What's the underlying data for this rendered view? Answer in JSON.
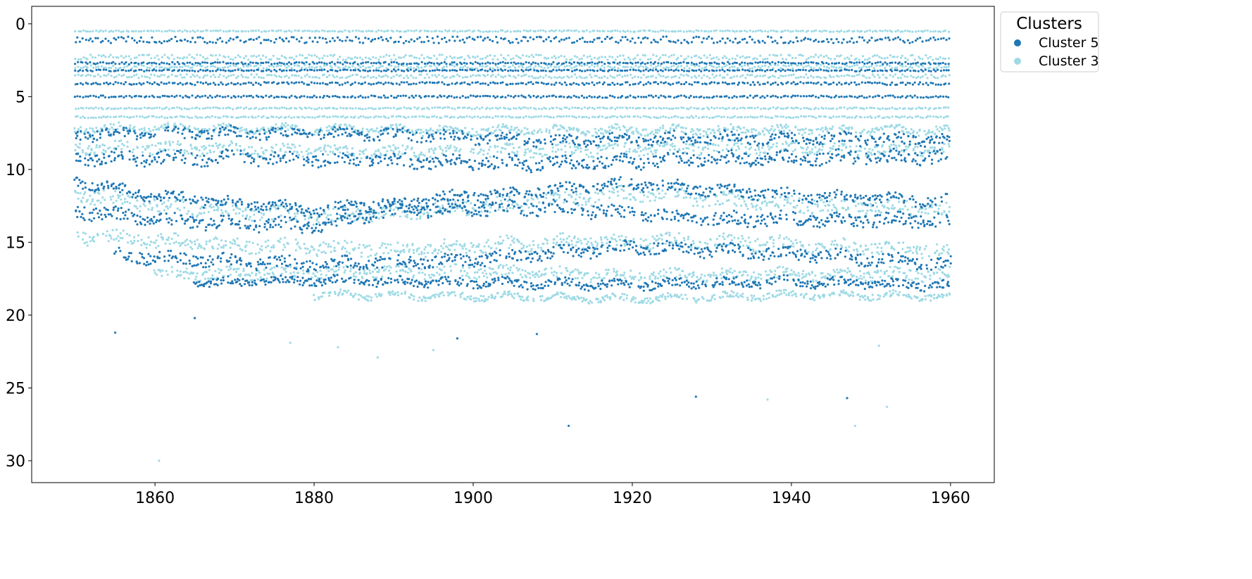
{
  "chart_data": {
    "type": "scatter",
    "title": "",
    "xlabel": "",
    "ylabel": "",
    "xlim": [
      1844.5,
      1965.5
    ],
    "ylim": [
      31.5,
      -1.2
    ],
    "y_inverted": true,
    "x_ticks": [
      1860,
      1880,
      1900,
      1920,
      1940,
      1960
    ],
    "y_ticks": [
      0,
      5,
      10,
      15,
      20,
      25,
      30
    ],
    "grid": false,
    "legend": {
      "title": "Clusters",
      "placement": "outside-top-right",
      "entries": [
        {
          "name": "Cluster 5",
          "color": "#1f77b4"
        },
        {
          "name": "Cluster 3",
          "color": "#9edae5"
        }
      ]
    },
    "series": [
      {
        "name": "Cluster 5",
        "color": "#1f77b4",
        "x_range": [
          1850,
          1960
        ],
        "flat_bands": [
          {
            "y": 1.1,
            "thickness": 0.45
          },
          {
            "y": 2.7,
            "thickness": 0.15
          },
          {
            "y": 3.2,
            "thickness": 0.12
          },
          {
            "y": 4.1,
            "thickness": 0.2
          },
          {
            "y": 5.0,
            "thickness": 0.15
          }
        ],
        "varying_bands": [
          {
            "x": [
              1850,
              1870,
              1890,
              1910,
              1930,
              1960
            ],
            "y": [
              7.6,
              7.5,
              7.6,
              8.0,
              7.8,
              8.0
            ],
            "thickness": 0.45
          },
          {
            "x": [
              1850,
              1870,
              1890,
              1910,
              1930,
              1960
            ],
            "y": [
              9.2,
              9.2,
              9.4,
              9.6,
              9.3,
              9.1
            ],
            "thickness": 0.55
          },
          {
            "x": [
              1850,
              1860,
              1880,
              1900,
              1920,
              1940,
              1960
            ],
            "y": [
              10.8,
              11.8,
              12.8,
              11.8,
              11.0,
              11.8,
              12.2
            ],
            "thickness": 0.45
          },
          {
            "x": [
              1850,
              1860,
              1880,
              1890,
              1910,
              1930,
              1960
            ],
            "y": [
              12.8,
              13.5,
              13.9,
              12.8,
              12.6,
              13.4,
              13.5
            ],
            "thickness": 0.55
          },
          {
            "x": [
              1855,
              1870,
              1880,
              1900,
              1920,
              1940,
              1960
            ],
            "y": [
              15.9,
              16.3,
              16.5,
              16.2,
              15.3,
              15.8,
              16.5
            ],
            "thickness": 0.5
          },
          {
            "x": [
              1865,
              1880,
              1900,
              1920,
              1940,
              1960
            ],
            "y": [
              17.8,
              17.6,
              17.8,
              17.9,
              17.7,
              18.0
            ],
            "thickness": 0.35
          }
        ],
        "sparse_points": [
          [
            1855,
            21.2
          ],
          [
            1865,
            20.2
          ],
          [
            1898,
            21.6
          ],
          [
            1908,
            21.3
          ],
          [
            1912,
            27.6
          ],
          [
            1928,
            25.6
          ],
          [
            1947,
            25.7
          ]
        ]
      },
      {
        "name": "Cluster 3",
        "color": "#9edae5",
        "x_range": [
          1850,
          1960
        ],
        "flat_bands": [
          {
            "y": 0.5,
            "thickness": 0.1
          },
          {
            "y": 2.3,
            "thickness": 0.35
          },
          {
            "y": 2.95,
            "thickness": 0.25
          },
          {
            "y": 3.6,
            "thickness": 0.25
          },
          {
            "y": 5.8,
            "thickness": 0.12
          },
          {
            "y": 6.4,
            "thickness": 0.12
          }
        ],
        "varying_bands": [
          {
            "x": [
              1850,
              1870,
              1890,
              1910,
              1930,
              1960
            ],
            "y": [
              7.2,
              7.2,
              7.3,
              7.3,
              7.3,
              7.3
            ],
            "thickness": 0.3
          },
          {
            "x": [
              1850,
              1870,
              1890,
              1910,
              1930,
              1960
            ],
            "y": [
              8.5,
              8.6,
              8.8,
              8.7,
              8.5,
              8.6
            ],
            "thickness": 0.45
          },
          {
            "x": [
              1850,
              1860,
              1880,
              1900,
              1920,
              1940,
              1960
            ],
            "y": [
              11.6,
              12.4,
              13.3,
              12.6,
              11.6,
              12.4,
              12.8
            ],
            "thickness": 0.6
          },
          {
            "x": [
              1850,
              1870,
              1890,
              1910,
              1930,
              1960
            ],
            "y": [
              14.6,
              15.2,
              15.5,
              15.0,
              14.9,
              15.6
            ],
            "thickness": 0.55
          },
          {
            "x": [
              1860,
              1880,
              1900,
              1920,
              1940,
              1960
            ],
            "y": [
              17.2,
              17.1,
              17.0,
              17.3,
              17.2,
              17.2
            ],
            "thickness": 0.45
          },
          {
            "x": [
              1880,
              1900,
              1920,
              1940,
              1960
            ],
            "y": [
              18.6,
              18.7,
              18.9,
              18.6,
              18.7
            ],
            "thickness": 0.25
          }
        ],
        "sparse_points": [
          [
            1860.5,
            30.0
          ],
          [
            1877,
            21.9
          ],
          [
            1883,
            22.2
          ],
          [
            1888,
            22.9
          ],
          [
            1895,
            22.4
          ],
          [
            1937,
            25.8
          ],
          [
            1948,
            27.6
          ],
          [
            1952,
            26.3
          ],
          [
            1951,
            22.1
          ]
        ]
      }
    ]
  }
}
